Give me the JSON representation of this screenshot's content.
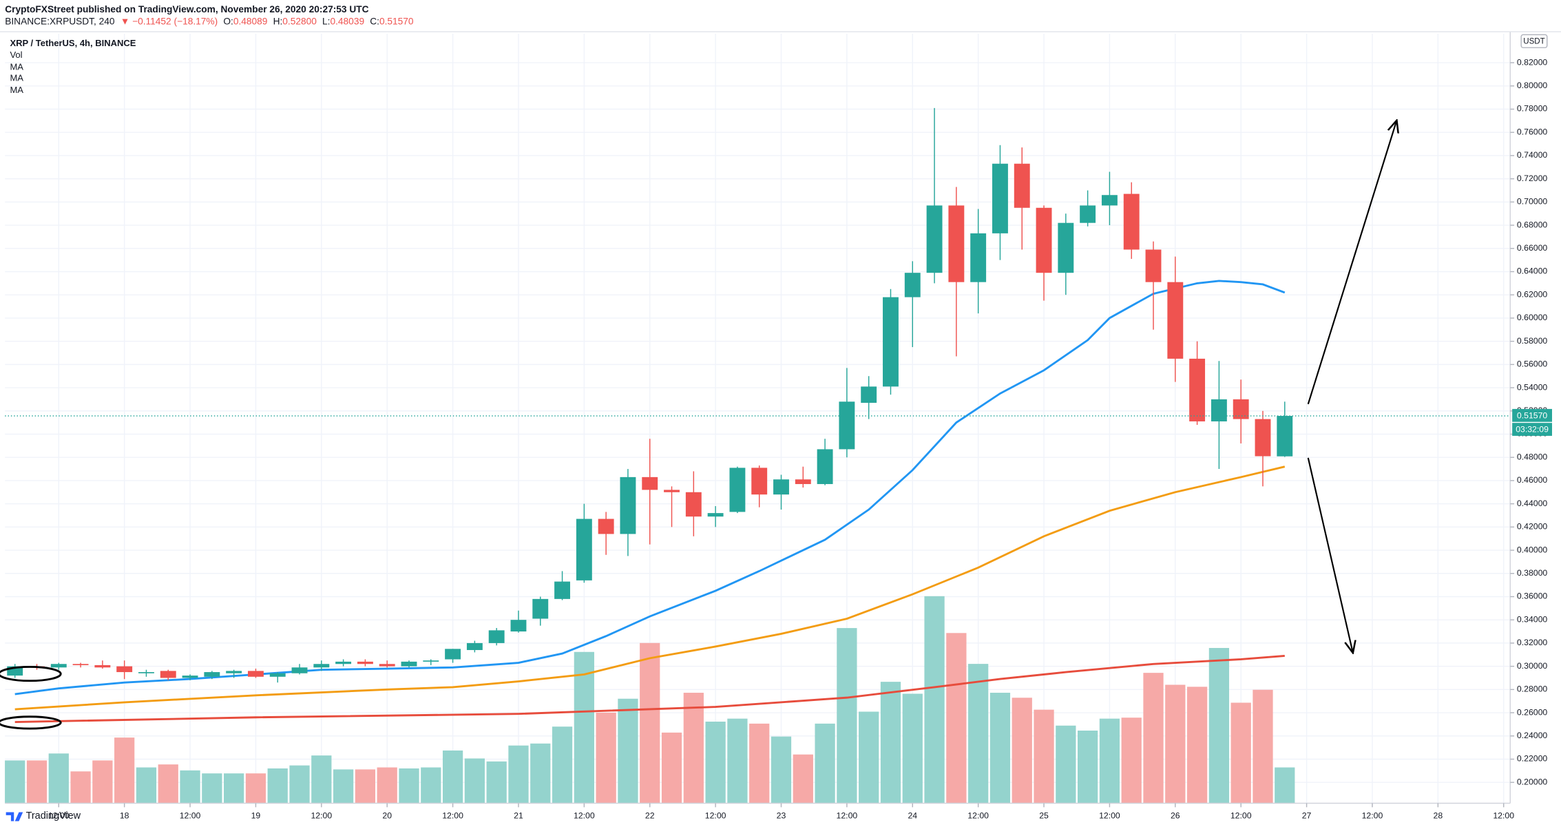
{
  "chart_data": {
    "type": "candlestick",
    "published": "CryptoFXStreet published on TradingView.com, November 26, 2020 20:27:53 UTC",
    "symbol": "BINANCE:XRPUSDT, 240",
    "change": "▼ −0.11452 (−18.17%)",
    "ohlc": [
      {
        "label": "O:",
        "value": "0.48089"
      },
      {
        "label": "H:",
        "value": "0.52800"
      },
      {
        "label": "L:",
        "value": "0.48039"
      },
      {
        "label": "C:",
        "value": "0.51570"
      }
    ],
    "currency": "USDT",
    "brand": "TradingView",
    "countdown": "03:32:09",
    "last_price": {
      "value": 0.5157,
      "label": "0.51570"
    },
    "up_color": "#26a69a",
    "down_color": "#ef5350",
    "candles": {
      "name": "XRP / TetherUS, 4h, BINANCE",
      "open": [
        0.292,
        0.3,
        0.299,
        0.302,
        0.301,
        0.3,
        0.294,
        0.296,
        0.29,
        0.291,
        0.294,
        0.296,
        0.291,
        0.294,
        0.299,
        0.302,
        0.304,
        0.302,
        0.3,
        0.304,
        0.306,
        0.314,
        0.32,
        0.33,
        0.341,
        0.358,
        0.374,
        0.427,
        0.414,
        0.463,
        0.452,
        0.45,
        0.429,
        0.433,
        0.471,
        0.448,
        0.461,
        0.457,
        0.487,
        0.527,
        0.541,
        0.618,
        0.639,
        0.697,
        0.631,
        0.673,
        0.733,
        0.695,
        0.639,
        0.682,
        0.697,
        0.707,
        0.659,
        0.631,
        0.565,
        0.511,
        0.53,
        0.513,
        0.48089
      ],
      "high": [
        0.302,
        0.302,
        0.303,
        0.303,
        0.305,
        0.305,
        0.297,
        0.297,
        0.293,
        0.296,
        0.297,
        0.298,
        0.295,
        0.302,
        0.305,
        0.306,
        0.306,
        0.305,
        0.305,
        0.306,
        0.315,
        0.322,
        0.333,
        0.348,
        0.36,
        0.382,
        0.44,
        0.433,
        0.47,
        0.496,
        0.455,
        0.468,
        0.438,
        0.472,
        0.473,
        0.465,
        0.472,
        0.496,
        0.557,
        0.55,
        0.625,
        0.649,
        0.781,
        0.713,
        0.694,
        0.749,
        0.747,
        0.697,
        0.69,
        0.71,
        0.726,
        0.717,
        0.666,
        0.653,
        0.58,
        0.563,
        0.547,
        0.52,
        0.528
      ],
      "low": [
        0.29,
        0.297,
        0.297,
        0.299,
        0.298,
        0.289,
        0.291,
        0.288,
        0.288,
        0.289,
        0.29,
        0.29,
        0.286,
        0.293,
        0.296,
        0.3,
        0.3,
        0.299,
        0.299,
        0.301,
        0.303,
        0.312,
        0.318,
        0.329,
        0.335,
        0.357,
        0.372,
        0.396,
        0.395,
        0.405,
        0.42,
        0.412,
        0.42,
        0.432,
        0.437,
        0.435,
        0.454,
        0.456,
        0.48,
        0.513,
        0.534,
        0.575,
        0.63,
        0.567,
        0.604,
        0.65,
        0.659,
        0.615,
        0.62,
        0.679,
        0.68,
        0.651,
        0.59,
        0.545,
        0.508,
        0.47,
        0.492,
        0.455,
        0.48039
      ],
      "close": [
        0.3,
        0.299,
        0.302,
        0.301,
        0.299,
        0.295,
        0.295,
        0.29,
        0.292,
        0.295,
        0.296,
        0.291,
        0.294,
        0.299,
        0.302,
        0.304,
        0.302,
        0.3,
        0.304,
        0.305,
        0.315,
        0.32,
        0.331,
        0.34,
        0.358,
        0.373,
        0.427,
        0.414,
        0.463,
        0.452,
        0.45,
        0.429,
        0.432,
        0.471,
        0.448,
        0.461,
        0.457,
        0.487,
        0.528,
        0.541,
        0.618,
        0.639,
        0.697,
        0.631,
        0.673,
        0.733,
        0.695,
        0.639,
        0.682,
        0.697,
        0.706,
        0.659,
        0.631,
        0.565,
        0.511,
        0.53,
        0.513,
        0.481,
        0.5157
      ]
    },
    "volume": {
      "name": "Vol",
      "up_color": "#94d3cd",
      "down_color": "#f6a9a7",
      "values": [
        43,
        43,
        50,
        32,
        43,
        66,
        36,
        39,
        33,
        30,
        30,
        30,
        35,
        38,
        48,
        34,
        34,
        36,
        35,
        36,
        53,
        45,
        42,
        58,
        60,
        77,
        152,
        91,
        105,
        161,
        71,
        111,
        82,
        85,
        80,
        67,
        49,
        80,
        176,
        92,
        122,
        110,
        208,
        171,
        140,
        111,
        106,
        94,
        78,
        73,
        85,
        86,
        131,
        119,
        117,
        156,
        101,
        114,
        36
      ],
      "vlim": [
        0,
        773
      ]
    },
    "moving_averages": [
      {
        "name": "MA",
        "color": "#2196f3",
        "x": [
          0,
          2,
          5,
          8,
          11,
          14,
          17,
          20,
          23,
          25,
          27,
          29,
          32,
          34,
          37,
          39,
          41,
          43,
          45,
          47,
          49,
          50,
          52,
          54,
          55,
          56,
          57,
          58
        ],
        "values": [
          0.276,
          0.281,
          0.286,
          0.289,
          0.293,
          0.297,
          0.298,
          0.299,
          0.303,
          0.311,
          0.326,
          0.343,
          0.365,
          0.382,
          0.409,
          0.435,
          0.469,
          0.51,
          0.535,
          0.555,
          0.581,
          0.6,
          0.621,
          0.63,
          0.632,
          0.631,
          0.629,
          0.622
        ]
      },
      {
        "name": "MA",
        "color": "#f39c12",
        "x": [
          0,
          5,
          11,
          17,
          20,
          23,
          26,
          29,
          32,
          35,
          38,
          41,
          44,
          47,
          50,
          53,
          56,
          58
        ],
        "values": [
          0.263,
          0.269,
          0.275,
          0.28,
          0.282,
          0.287,
          0.293,
          0.307,
          0.317,
          0.328,
          0.341,
          0.362,
          0.385,
          0.412,
          0.434,
          0.45,
          0.463,
          0.472
        ]
      },
      {
        "name": "MA",
        "color": "#e74c3c",
        "x": [
          0,
          11,
          23,
          32,
          38,
          42,
          45,
          48,
          52,
          56,
          58
        ],
        "values": [
          0.252,
          0.256,
          0.259,
          0.265,
          0.273,
          0.282,
          0.289,
          0.295,
          0.302,
          0.306,
          0.309
        ]
      }
    ],
    "xlim": [
      -0.455,
      68.3
    ],
    "xticks": [
      {
        "value": 2,
        "label": "12:00"
      },
      {
        "value": 5,
        "label": "18"
      },
      {
        "value": 8,
        "label": "12:00"
      },
      {
        "value": 11,
        "label": "19"
      },
      {
        "value": 14,
        "label": "12:00"
      },
      {
        "value": 17,
        "label": "20"
      },
      {
        "value": 20,
        "label": "12:00"
      },
      {
        "value": 23,
        "label": "21"
      },
      {
        "value": 26,
        "label": "12:00"
      },
      {
        "value": 29,
        "label": "22"
      },
      {
        "value": 32,
        "label": "12:00"
      },
      {
        "value": 35,
        "label": "23"
      },
      {
        "value": 38,
        "label": "12:00"
      },
      {
        "value": 41,
        "label": "24"
      },
      {
        "value": 44,
        "label": "12:00"
      },
      {
        "value": 47,
        "label": "25"
      },
      {
        "value": 50,
        "label": "12:00"
      },
      {
        "value": 53,
        "label": "26"
      },
      {
        "value": 56,
        "label": "12:00"
      },
      {
        "value": 59,
        "label": "27"
      },
      {
        "value": 62,
        "label": "12:00"
      },
      {
        "value": 65,
        "label": "28"
      },
      {
        "value": 68,
        "label": "12:00"
      }
    ],
    "ylim": [
      0.182,
      0.845
    ],
    "yticks": [
      {
        "value": 0.2,
        "label": "0.20000"
      },
      {
        "value": 0.22,
        "label": "0.22000"
      },
      {
        "value": 0.24,
        "label": "0.24000"
      },
      {
        "value": 0.26,
        "label": "0.26000"
      },
      {
        "value": 0.28,
        "label": "0.28000"
      },
      {
        "value": 0.3,
        "label": "0.30000"
      },
      {
        "value": 0.32,
        "label": "0.32000"
      },
      {
        "value": 0.34,
        "label": "0.34000"
      },
      {
        "value": 0.36,
        "label": "0.36000"
      },
      {
        "value": 0.38,
        "label": "0.38000"
      },
      {
        "value": 0.4,
        "label": "0.40000"
      },
      {
        "value": 0.42,
        "label": "0.42000"
      },
      {
        "value": 0.44,
        "label": "0.44000"
      },
      {
        "value": 0.46,
        "label": "0.46000"
      },
      {
        "value": 0.48,
        "label": "0.48000"
      },
      {
        "value": 0.5,
        "label": "0.50000"
      },
      {
        "value": 0.52,
        "label": "0.52000"
      },
      {
        "value": 0.54,
        "label": "0.54000"
      },
      {
        "value": 0.56,
        "label": "0.56000"
      },
      {
        "value": 0.58,
        "label": "0.58000"
      },
      {
        "value": 0.6,
        "label": "0.60000"
      },
      {
        "value": 0.62,
        "label": "0.62000"
      },
      {
        "value": 0.64,
        "label": "0.64000"
      },
      {
        "value": 0.66,
        "label": "0.66000"
      },
      {
        "value": 0.68,
        "label": "0.68000"
      },
      {
        "value": 0.7,
        "label": "0.70000"
      },
      {
        "value": 0.72,
        "label": "0.72000"
      },
      {
        "value": 0.74,
        "label": "0.74000"
      },
      {
        "value": 0.76,
        "label": "0.76000"
      },
      {
        "value": 0.78,
        "label": "0.78000"
      },
      {
        "value": 0.8,
        "label": "0.80000"
      },
      {
        "value": 0.82,
        "label": "0.82000"
      }
    ],
    "grid": true
  }
}
